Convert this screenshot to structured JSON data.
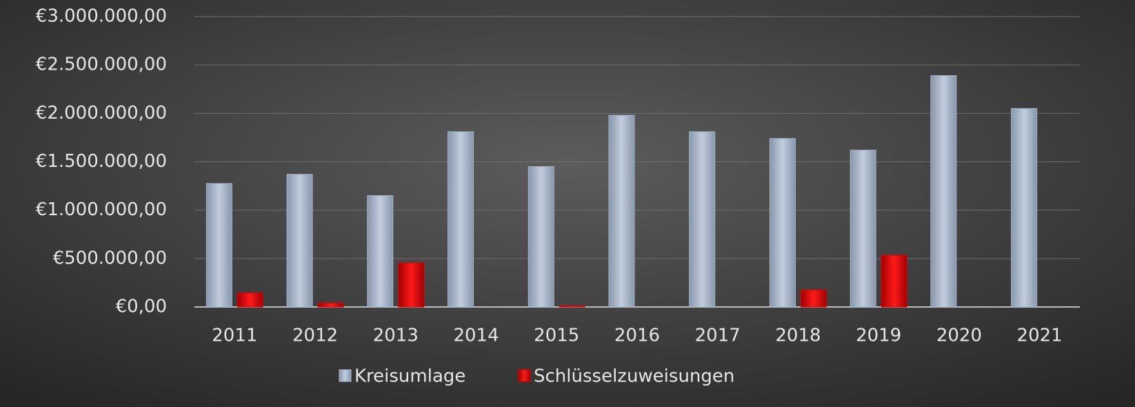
{
  "chart_data": {
    "type": "bar",
    "categories": [
      "2011",
      "2012",
      "2013",
      "2014",
      "2015",
      "2016",
      "2017",
      "2018",
      "2019",
      "2020",
      "2021"
    ],
    "series": [
      {
        "name": "Kreisumlage",
        "color": "#a9b8cc",
        "values": [
          1275000,
          1370000,
          1150000,
          1810000,
          1450000,
          1980000,
          1810000,
          1740000,
          1620000,
          2390000,
          2050000
        ]
      },
      {
        "name": "Schlüsselzuweisungen",
        "color": "#e00000",
        "values": [
          145000,
          40000,
          455000,
          0,
          10000,
          0,
          0,
          175000,
          535000,
          0,
          0
        ]
      }
    ],
    "ylim": [
      0,
      3000000
    ],
    "yticks": [
      {
        "value": 0,
        "label": "€0,00"
      },
      {
        "value": 500000,
        "label": "€500.000,00"
      },
      {
        "value": 1000000,
        "label": "€1.000.000,00"
      },
      {
        "value": 1500000,
        "label": "€1.500.000,00"
      },
      {
        "value": 2000000,
        "label": "€2.000.000,00"
      },
      {
        "value": 2500000,
        "label": "€2.500.000,00"
      },
      {
        "value": 3000000,
        "label": "€3.000.000,00"
      }
    ],
    "grid": true,
    "legend": "bottom"
  }
}
